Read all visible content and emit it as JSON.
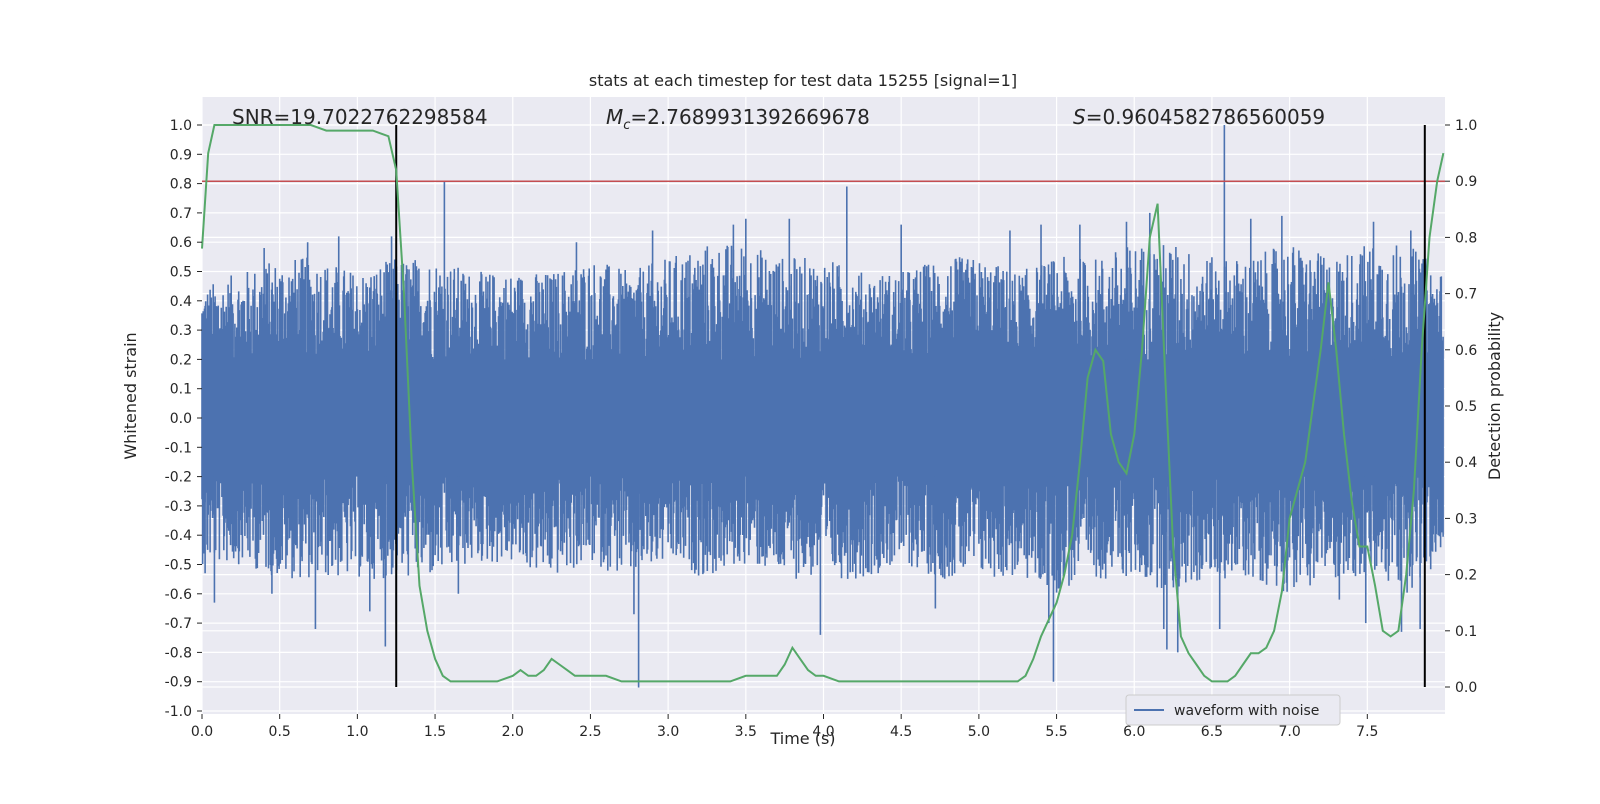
{
  "chart_data": {
    "type": "line",
    "title": "stats at each timestep for test data 15255 [signal=1]",
    "xlabel": "Time (s)",
    "ylabel": "Whitened strain",
    "ylabel_right": "Detection probability",
    "xlim": [
      0.0,
      8.0
    ],
    "ylim": [
      -1.0,
      1.0
    ],
    "ylim_right": [
      -0.04,
      1.04
    ],
    "x_ticks": [
      "0.0",
      "0.5",
      "1.0",
      "1.5",
      "2.0",
      "2.5",
      "3.0",
      "3.5",
      "4.0",
      "4.5",
      "5.0",
      "5.5",
      "6.0",
      "6.5",
      "7.0",
      "7.5"
    ],
    "y_ticks": [
      "1.0",
      "0.9",
      "0.8",
      "0.7",
      "0.6",
      "0.5",
      "0.4",
      "0.3",
      "0.2",
      "0.1",
      "0.0",
      "-0.1",
      "-0.2",
      "-0.3",
      "-0.4",
      "-0.5",
      "-0.6",
      "-0.7",
      "-0.8",
      "-0.9",
      "-1.0"
    ],
    "y_ticks_right": [
      "1.0",
      "0.9",
      "0.8",
      "0.7",
      "0.6",
      "0.5",
      "0.4",
      "0.3",
      "0.2",
      "0.1",
      "0.0"
    ],
    "annotations": {
      "snr": "SNR=19.7022762298584",
      "mc_symbol": "M",
      "mc_sub": "c",
      "mc_value": "=2.7689931392669678",
      "s_symbol": "S",
      "s_value": "=0.9604582786560059"
    },
    "legend": {
      "label": "waveform with noise",
      "placement": "lower right"
    },
    "grid": true,
    "background": "#eaeaf2",
    "colors": {
      "waveform": "#4c72b0",
      "probability": "#55a868",
      "threshold": "#c44e52",
      "markers": "#000000"
    },
    "threshold_probability": 0.9,
    "marker_lines_x": [
      1.25,
      7.87
    ],
    "series": [
      {
        "name": "waveform with noise",
        "envelope": {
          "x": [
            0.0,
            0.25,
            0.5,
            0.75,
            1.0,
            1.25,
            1.5,
            1.75,
            2.0,
            2.25,
            2.5,
            2.75,
            3.0,
            3.25,
            3.5,
            3.75,
            4.0,
            4.25,
            4.5,
            4.75,
            5.0,
            5.25,
            5.5,
            5.75,
            6.0,
            6.25,
            6.5,
            6.75,
            7.0,
            7.25,
            7.5,
            7.75,
            7.99
          ],
          "upper": [
            0.45,
            0.5,
            0.55,
            0.55,
            0.5,
            0.55,
            0.55,
            0.5,
            0.5,
            0.5,
            0.55,
            0.5,
            0.55,
            0.6,
            0.6,
            0.55,
            0.55,
            0.5,
            0.5,
            0.55,
            0.55,
            0.5,
            0.55,
            0.55,
            0.6,
            0.6,
            0.55,
            0.55,
            0.6,
            0.55,
            0.6,
            0.6,
            0.5
          ],
          "lower": [
            -0.5,
            -0.5,
            -0.55,
            -0.55,
            -0.55,
            -0.55,
            -0.55,
            -0.5,
            -0.5,
            -0.55,
            -0.5,
            -0.55,
            -0.5,
            -0.55,
            -0.5,
            -0.55,
            -0.55,
            -0.55,
            -0.5,
            -0.55,
            -0.55,
            -0.55,
            -0.6,
            -0.55,
            -0.55,
            -0.6,
            -0.55,
            -0.55,
            -0.6,
            -0.55,
            -0.55,
            -0.6,
            -0.5
          ]
        },
        "spikes": [
          {
            "x": 0.02,
            "y": -0.53
          },
          {
            "x": 0.08,
            "y": -0.63
          },
          {
            "x": 0.4,
            "y": 0.58
          },
          {
            "x": 0.45,
            "y": -0.6
          },
          {
            "x": 0.68,
            "y": 0.6
          },
          {
            "x": 0.73,
            "y": -0.72
          },
          {
            "x": 0.88,
            "y": 0.62
          },
          {
            "x": 1.08,
            "y": -0.66
          },
          {
            "x": 1.18,
            "y": -0.78
          },
          {
            "x": 1.22,
            "y": 0.62
          },
          {
            "x": 1.25,
            "y": -0.7
          },
          {
            "x": 1.56,
            "y": 0.81
          },
          {
            "x": 1.65,
            "y": -0.6
          },
          {
            "x": 2.41,
            "y": 0.6
          },
          {
            "x": 2.78,
            "y": -0.67
          },
          {
            "x": 2.81,
            "y": -0.92
          },
          {
            "x": 2.9,
            "y": 0.64
          },
          {
            "x": 3.42,
            "y": 0.66
          },
          {
            "x": 3.5,
            "y": 0.68
          },
          {
            "x": 3.78,
            "y": 0.68
          },
          {
            "x": 3.98,
            "y": -0.74
          },
          {
            "x": 4.15,
            "y": 0.79
          },
          {
            "x": 4.5,
            "y": 0.66
          },
          {
            "x": 4.72,
            "y": -0.65
          },
          {
            "x": 5.2,
            "y": 0.64
          },
          {
            "x": 5.4,
            "y": 0.66
          },
          {
            "x": 5.45,
            "y": -0.7
          },
          {
            "x": 5.48,
            "y": -0.9
          },
          {
            "x": 5.65,
            "y": 0.66
          },
          {
            "x": 5.95,
            "y": 0.67
          },
          {
            "x": 6.1,
            "y": 0.7
          },
          {
            "x": 6.19,
            "y": -0.72
          },
          {
            "x": 6.21,
            "y": -0.79
          },
          {
            "x": 6.28,
            "y": -0.8
          },
          {
            "x": 6.55,
            "y": -0.72
          },
          {
            "x": 6.58,
            "y": 1.0
          },
          {
            "x": 6.75,
            "y": 0.68
          },
          {
            "x": 6.95,
            "y": 0.69
          },
          {
            "x": 7.32,
            "y": -0.62
          },
          {
            "x": 7.49,
            "y": -0.7
          },
          {
            "x": 7.54,
            "y": 0.67
          },
          {
            "x": 7.72,
            "y": -0.73
          },
          {
            "x": 7.78,
            "y": 0.64
          },
          {
            "x": 7.84,
            "y": -0.72
          }
        ]
      },
      {
        "name": "",
        "axis": "right",
        "x": [
          0.0,
          0.04,
          0.08,
          0.12,
          0.2,
          0.3,
          0.4,
          0.5,
          0.6,
          0.7,
          0.8,
          0.9,
          1.0,
          1.1,
          1.2,
          1.25,
          1.3,
          1.35,
          1.4,
          1.45,
          1.5,
          1.55,
          1.6,
          1.7,
          1.8,
          1.9,
          2.0,
          2.05,
          2.1,
          2.15,
          2.2,
          2.25,
          2.3,
          2.35,
          2.4,
          2.5,
          2.6,
          2.7,
          2.8,
          2.9,
          3.0,
          3.1,
          3.2,
          3.3,
          3.4,
          3.5,
          3.55,
          3.6,
          3.7,
          3.75,
          3.8,
          3.85,
          3.9,
          3.95,
          4.0,
          4.1,
          4.2,
          4.3,
          4.4,
          4.5,
          4.6,
          4.7,
          4.8,
          4.9,
          5.0,
          5.1,
          5.2,
          5.25,
          5.3,
          5.35,
          5.4,
          5.45,
          5.5,
          5.55,
          5.6,
          5.65,
          5.7,
          5.75,
          5.8,
          5.85,
          5.9,
          5.95,
          6.0,
          6.05,
          6.1,
          6.15,
          6.2,
          6.25,
          6.3,
          6.35,
          6.4,
          6.45,
          6.5,
          6.55,
          6.6,
          6.65,
          6.7,
          6.75,
          6.8,
          6.85,
          6.9,
          6.95,
          7.0,
          7.05,
          7.1,
          7.15,
          7.2,
          7.25,
          7.3,
          7.35,
          7.4,
          7.45,
          7.5,
          7.55,
          7.6,
          7.65,
          7.7,
          7.75,
          7.8,
          7.85,
          7.9,
          7.95,
          7.99
        ],
        "y": [
          0.78,
          0.95,
          1.0,
          1.0,
          1.0,
          1.0,
          1.0,
          1.0,
          1.0,
          1.0,
          0.99,
          0.99,
          0.99,
          0.99,
          0.98,
          0.92,
          0.7,
          0.4,
          0.18,
          0.1,
          0.05,
          0.02,
          0.01,
          0.01,
          0.01,
          0.01,
          0.02,
          0.03,
          0.02,
          0.02,
          0.03,
          0.05,
          0.04,
          0.03,
          0.02,
          0.02,
          0.02,
          0.01,
          0.01,
          0.01,
          0.01,
          0.01,
          0.01,
          0.01,
          0.01,
          0.02,
          0.02,
          0.02,
          0.02,
          0.04,
          0.07,
          0.05,
          0.03,
          0.02,
          0.02,
          0.01,
          0.01,
          0.01,
          0.01,
          0.01,
          0.01,
          0.01,
          0.01,
          0.01,
          0.01,
          0.01,
          0.01,
          0.01,
          0.02,
          0.05,
          0.09,
          0.12,
          0.15,
          0.2,
          0.27,
          0.4,
          0.55,
          0.6,
          0.58,
          0.45,
          0.4,
          0.38,
          0.45,
          0.6,
          0.8,
          0.86,
          0.55,
          0.25,
          0.09,
          0.06,
          0.04,
          0.02,
          0.01,
          0.01,
          0.01,
          0.02,
          0.04,
          0.06,
          0.06,
          0.07,
          0.1,
          0.17,
          0.3,
          0.35,
          0.4,
          0.5,
          0.6,
          0.72,
          0.6,
          0.45,
          0.33,
          0.25,
          0.25,
          0.18,
          0.1,
          0.09,
          0.1,
          0.2,
          0.35,
          0.6,
          0.8,
          0.9,
          0.95
        ]
      }
    ]
  }
}
